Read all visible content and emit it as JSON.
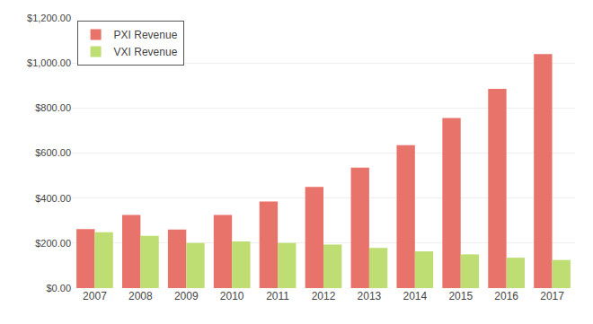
{
  "chart_data": {
    "type": "bar",
    "categories": [
      "2007",
      "2008",
      "2009",
      "2010",
      "2011",
      "2012",
      "2013",
      "2014",
      "2015",
      "2016",
      "2017"
    ],
    "series": [
      {
        "name": "PXI Revenue",
        "color": "#E8736A",
        "values": [
          262,
          325,
          260,
          325,
          385,
          450,
          535,
          635,
          755,
          885,
          1040
        ]
      },
      {
        "name": "VXI Revenue",
        "color": "#BEDD72",
        "values": [
          248,
          232,
          200,
          207,
          200,
          193,
          178,
          163,
          150,
          135,
          125
        ]
      }
    ],
    "ylim": [
      0,
      1200
    ],
    "yticks": [
      {
        "value": 0,
        "label": "$0.00"
      },
      {
        "value": 200,
        "label": "$200.00"
      },
      {
        "value": 400,
        "label": "$400.00"
      },
      {
        "value": 600,
        "label": "$600.00"
      },
      {
        "value": 800,
        "label": "$800.00"
      },
      {
        "value": 1000,
        "label": "$1,000.00"
      },
      {
        "value": 1200,
        "label": "$1,200.00"
      }
    ],
    "grid": true,
    "legend": "upper left"
  }
}
